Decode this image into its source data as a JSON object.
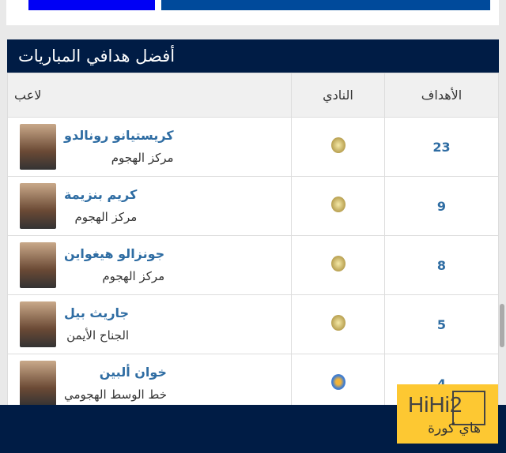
{
  "title": "أفضل هدافي المباريات",
  "headers": {
    "goals": "الأهداف",
    "club": "النادي",
    "player": "لاعب"
  },
  "rows": [
    {
      "goals": "23",
      "name": "كريستيانو رونالدو",
      "position": "مركز الهجوم",
      "club_icon": "real-madrid-crest-icon"
    },
    {
      "goals": "9",
      "name": "كريم بنزيمة",
      "position": "مركز الهجوم",
      "club_icon": "real-madrid-crest-icon"
    },
    {
      "goals": "8",
      "name": "جونزالو هيغواين",
      "position": "مركز الهجوم",
      "club_icon": "real-madrid-crest-icon"
    },
    {
      "goals": "5",
      "name": "جاريث بيل",
      "position": "الجناح الأيمن",
      "club_icon": "real-madrid-crest-icon"
    },
    {
      "goals": "4",
      "name": "خوان ألبين",
      "position": "خط الوسط الهجومي",
      "club_icon": "getafe-crest-icon"
    }
  ],
  "logo": {
    "text_en": "HiHi2",
    "text_ar": "هاي كورة"
  },
  "colors": {
    "header": "#001c45",
    "link": "#2f6da3",
    "logo_bg": "#fdc832"
  }
}
